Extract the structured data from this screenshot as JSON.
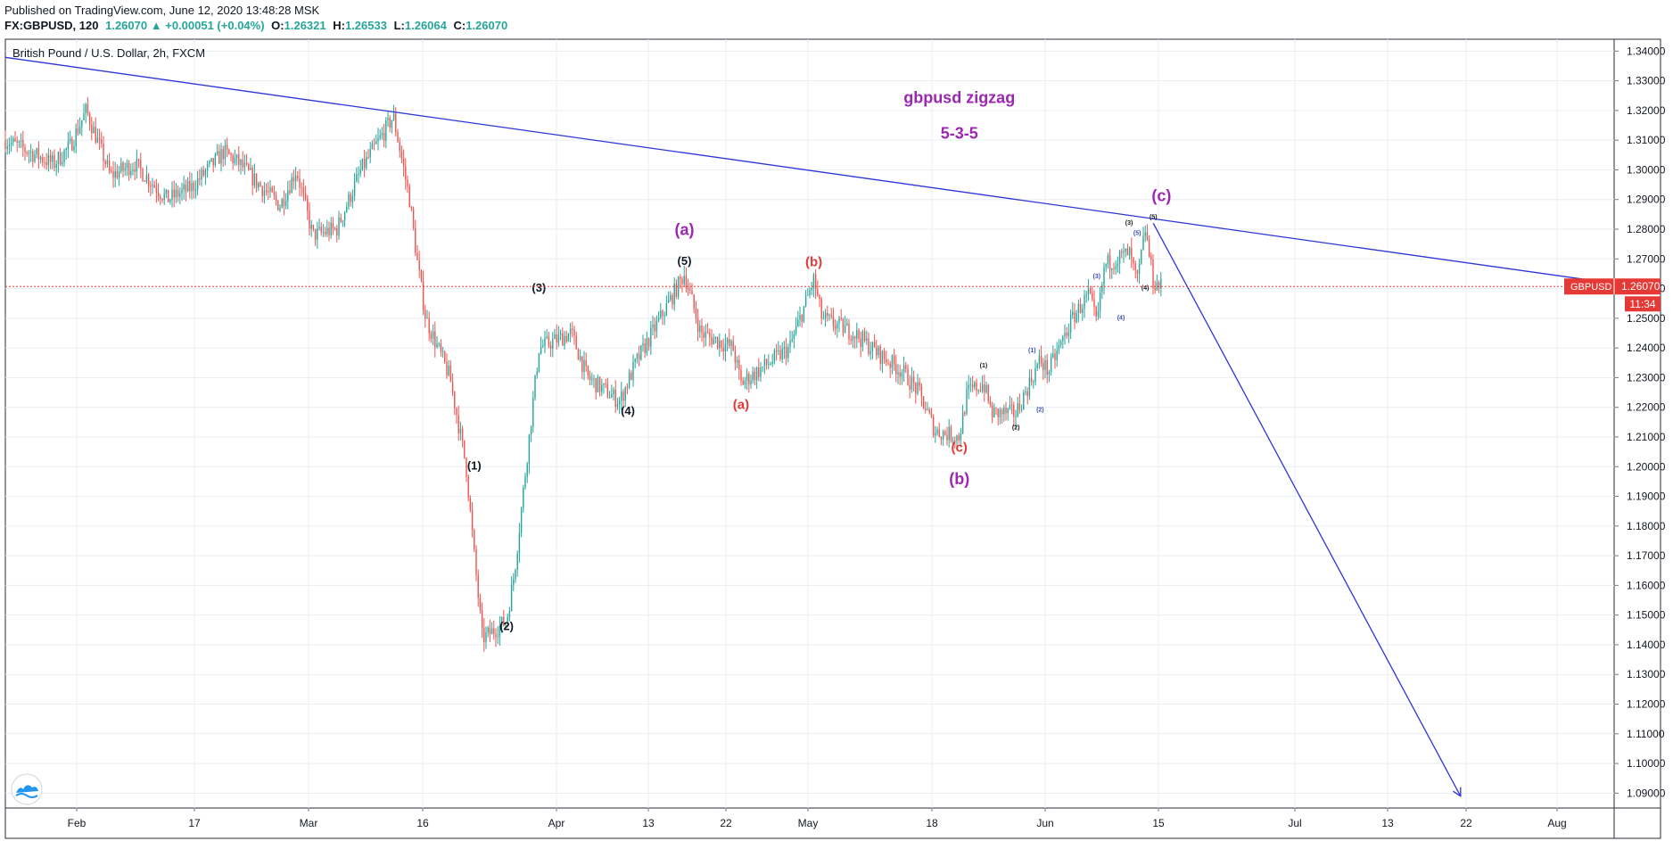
{
  "header": {
    "published": "Published on TradingView.com, June 12, 2020 13:48:28 MSK",
    "symbol": "FX:GBPUSD, 120",
    "last": "1.26070",
    "change": "+0.00051 (+0.04%)",
    "o_label": "O:",
    "o_value": "1.26321",
    "h_label": "H:",
    "h_value": "1.26533",
    "l_label": "L:",
    "l_value": "1.26064",
    "c_label": "C:",
    "c_value": "1.26070"
  },
  "chart_data": {
    "type": "line",
    "title": "British Pound / U.S. Dollar, 2h, FXCM",
    "price_axis": {
      "ticks": [
        "1.34000",
        "1.33000",
        "1.32000",
        "1.31000",
        "1.30000",
        "1.29000",
        "1.28000",
        "1.27000",
        "1.26000",
        "1.25000",
        "1.24000",
        "1.23000",
        "1.22000",
        "1.21000",
        "1.20000",
        "1.19000",
        "1.18000",
        "1.17000",
        "1.16000",
        "1.15000",
        "1.14000",
        "1.13000",
        "1.12000",
        "1.11000",
        "1.10000",
        "1.09000"
      ],
      "range": [
        1.085,
        1.344
      ]
    },
    "time_axis": {
      "labels": [
        "Feb",
        "17",
        "Mar",
        "16",
        "Apr",
        "13",
        "22",
        "May",
        "18",
        "Jun",
        "15",
        "Jul",
        "13",
        "22",
        "Aug"
      ],
      "range": [
        "2020-01-21",
        "2020-08-07"
      ]
    },
    "series": [
      {
        "values": [
          {
            "x": "2020-01-21",
            "y": 1.31
          },
          {
            "x": "2020-01-24",
            "y": 1.306
          },
          {
            "x": "2020-01-27",
            "y": 1.302
          },
          {
            "x": "2020-01-29",
            "y": 1.308
          },
          {
            "x": "2020-01-31",
            "y": 1.32
          },
          {
            "x": "2020-02-03",
            "y": 1.298
          },
          {
            "x": "2020-02-06",
            "y": 1.302
          },
          {
            "x": "2020-02-10",
            "y": 1.29
          },
          {
            "x": "2020-02-13",
            "y": 1.294
          },
          {
            "x": "2020-02-17",
            "y": 1.306
          },
          {
            "x": "2020-02-19",
            "y": 1.302
          },
          {
            "x": "2020-02-21",
            "y": 1.296
          },
          {
            "x": "2020-02-24",
            "y": 1.288
          },
          {
            "x": "2020-02-26",
            "y": 1.3
          },
          {
            "x": "2020-02-28",
            "y": 1.278
          },
          {
            "x": "2020-03-02",
            "y": 1.28
          },
          {
            "x": "2020-03-05",
            "y": 1.3
          },
          {
            "x": "2020-03-09",
            "y": 1.318
          },
          {
            "x": "2020-03-11",
            "y": 1.29
          },
          {
            "x": "2020-03-12",
            "y": 1.268
          },
          {
            "x": "2020-03-13",
            "y": 1.25
          },
          {
            "x": "2020-03-16",
            "y": 1.23
          },
          {
            "x": "2020-03-18",
            "y": 1.2
          },
          {
            "x": "2020-03-19",
            "y": 1.17
          },
          {
            "x": "2020-03-20",
            "y": 1.142
          },
          {
            "x": "2020-03-23",
            "y": 1.148
          },
          {
            "x": "2020-03-24",
            "y": 1.165
          },
          {
            "x": "2020-03-26",
            "y": 1.215
          },
          {
            "x": "2020-03-27",
            "y": 1.24
          },
          {
            "x": "2020-03-31",
            "y": 1.245
          },
          {
            "x": "2020-04-02",
            "y": 1.23
          },
          {
            "x": "2020-04-06",
            "y": 1.222
          },
          {
            "x": "2020-04-08",
            "y": 1.235
          },
          {
            "x": "2020-04-10",
            "y": 1.245
          },
          {
            "x": "2020-04-14",
            "y": 1.265
          },
          {
            "x": "2020-04-16",
            "y": 1.245
          },
          {
            "x": "2020-04-20",
            "y": 1.24
          },
          {
            "x": "2020-04-21",
            "y": 1.228
          },
          {
            "x": "2020-04-23",
            "y": 1.232
          },
          {
            "x": "2020-04-27",
            "y": 1.24
          },
          {
            "x": "2020-04-30",
            "y": 1.263
          },
          {
            "x": "2020-05-01",
            "y": 1.25
          },
          {
            "x": "2020-05-05",
            "y": 1.245
          },
          {
            "x": "2020-05-08",
            "y": 1.238
          },
          {
            "x": "2020-05-11",
            "y": 1.232
          },
          {
            "x": "2020-05-13",
            "y": 1.225
          },
          {
            "x": "2020-05-15",
            "y": 1.212
          },
          {
            "x": "2020-05-18",
            "y": 1.21
          },
          {
            "x": "2020-05-19",
            "y": 1.225
          },
          {
            "x": "2020-05-21",
            "y": 1.228
          },
          {
            "x": "2020-05-22",
            "y": 1.218
          },
          {
            "x": "2020-05-25",
            "y": 1.218
          },
          {
            "x": "2020-05-27",
            "y": 1.23
          },
          {
            "x": "2020-05-28",
            "y": 1.236
          },
          {
            "x": "2020-05-29",
            "y": 1.232
          },
          {
            "x": "2020-06-01",
            "y": 1.25
          },
          {
            "x": "2020-06-03",
            "y": 1.258
          },
          {
            "x": "2020-06-04",
            "y": 1.248
          },
          {
            "x": "2020-06-05",
            "y": 1.268
          },
          {
            "x": "2020-06-08",
            "y": 1.272
          },
          {
            "x": "2020-06-09",
            "y": 1.262
          },
          {
            "x": "2020-06-10",
            "y": 1.28
          },
          {
            "x": "2020-06-11",
            "y": 1.262
          },
          {
            "x": "2020-06-12",
            "y": 1.2607
          }
        ]
      }
    ],
    "lines": [
      {
        "x1": "2020-01-21",
        "y1": 1.3379,
        "x2": "2020-08-07",
        "y2": 1.2617
      },
      {
        "x1": "2020-06-11",
        "y1": 1.282,
        "x2": "2020-07-19",
        "y2": 1.089
      }
    ],
    "last_price": {
      "symbol": "GBPUSD",
      "value": "1.26070",
      "countdown": "11:34"
    },
    "annotations": [
      {
        "text": "gbpusd zigzag",
        "x": "2020-05-18",
        "y": 1.3225,
        "color": "#9c27b0",
        "size": 18
      },
      {
        "text": "5-3-5",
        "x": "2020-05-18",
        "y": 1.3105,
        "color": "#9c27b0",
        "size": 18
      },
      {
        "text": "(a)",
        "x": "2020-04-14",
        "y": 1.278,
        "color": "#9c27b0",
        "size": 18
      },
      {
        "text": "(b)",
        "x": "2020-05-18",
        "y": 1.194,
        "color": "#9c27b0",
        "size": 18
      },
      {
        "text": "(c)",
        "x": "2020-06-12",
        "y": 1.2895,
        "color": "#9c27b0",
        "size": 18
      },
      {
        "text": "(1)",
        "x": "2020-03-19",
        "y": 1.199,
        "color": "#131722",
        "size": 13
      },
      {
        "text": "(2)",
        "x": "2020-03-23",
        "y": 1.145,
        "color": "#131722",
        "size": 13
      },
      {
        "text": "(3)",
        "x": "2020-03-27",
        "y": 1.259,
        "color": "#131722",
        "size": 13
      },
      {
        "text": "(4)",
        "x": "2020-04-07",
        "y": 1.2175,
        "color": "#131722",
        "size": 13
      },
      {
        "text": "(5)",
        "x": "2020-04-14",
        "y": 1.268,
        "color": "#131722",
        "size": 13
      },
      {
        "text": "(a)",
        "x": "2020-04-21",
        "y": 1.2195,
        "color": "#e53935",
        "size": 15
      },
      {
        "text": "(b)",
        "x": "2020-04-30",
        "y": 1.2675,
        "color": "#e53935",
        "size": 15
      },
      {
        "text": "(c)",
        "x": "2020-05-18",
        "y": 1.205,
        "color": "#e53935",
        "size": 15
      },
      {
        "text": "(1)",
        "x": "2020-05-21",
        "y": 1.2335,
        "color": "#131722",
        "size": 7
      },
      {
        "text": "(2)",
        "x": "2020-05-25",
        "y": 1.2125,
        "color": "#131722",
        "size": 7
      },
      {
        "text": "(1)",
        "x": "2020-05-27",
        "y": 1.2385,
        "color": "#3f51b5",
        "size": 7
      },
      {
        "text": "(2)",
        "x": "2020-05-28",
        "y": 1.2185,
        "color": "#3f51b5",
        "size": 7
      },
      {
        "text": "(3)",
        "x": "2020-06-04",
        "y": 1.2635,
        "color": "#3f51b5",
        "size": 7
      },
      {
        "text": "(4)",
        "x": "2020-06-07",
        "y": 1.2495,
        "color": "#3f51b5",
        "size": 7
      },
      {
        "text": "(5)",
        "x": "2020-06-09",
        "y": 1.278,
        "color": "#3f51b5",
        "size": 7
      },
      {
        "text": "(3)",
        "x": "2020-06-08",
        "y": 1.2815,
        "color": "#131722",
        "size": 7
      },
      {
        "text": "(4)",
        "x": "2020-06-10",
        "y": 1.2595,
        "color": "#131722",
        "size": 7
      },
      {
        "text": "(5)",
        "x": "2020-06-11",
        "y": 1.2835,
        "color": "#131722",
        "size": 7
      }
    ],
    "colors": {
      "up": "#26a69a",
      "down": "#ef5350",
      "trendline": "#2e35d6",
      "price_line": "#e53935",
      "grid": "#e8edf3"
    }
  }
}
